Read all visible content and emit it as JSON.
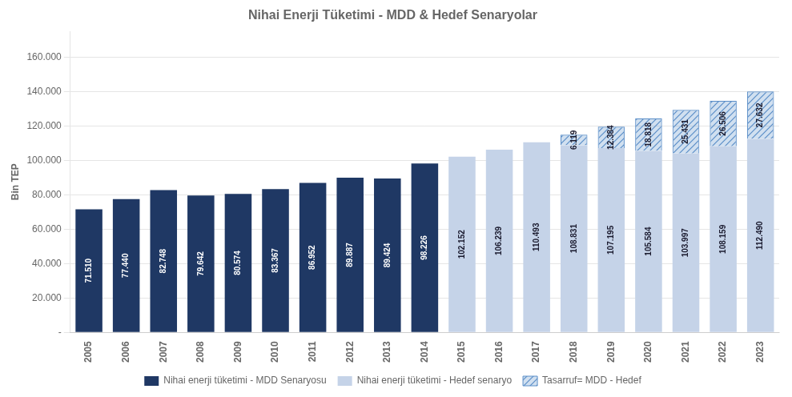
{
  "chart_data": {
    "type": "bar",
    "title": "Nihai Enerji Tüketimi - MDD & Hedef Senaryolar",
    "y_label": "Bin TEP",
    "categories": [
      "2005",
      "2006",
      "2007",
      "2008",
      "2009",
      "2010",
      "2011",
      "2012",
      "2013",
      "2014",
      "2015",
      "2016",
      "2017",
      "2018",
      "2019",
      "2020",
      "2021",
      "2022",
      "2023"
    ],
    "series": [
      {
        "name": "Nihai enerji tüketimi - MDD Senaryosu",
        "color": "#1F3864",
        "values": [
          71510,
          77440,
          82748,
          79642,
          80574,
          83367,
          86952,
          89887,
          89424,
          98226,
          null,
          null,
          null,
          null,
          null,
          null,
          null,
          null,
          null
        ],
        "value_labels": [
          "71.510",
          "77.440",
          "82.748",
          "79.642",
          "80.574",
          "83.367",
          "86.952",
          "89.887",
          "89.424",
          "98.226",
          null,
          null,
          null,
          null,
          null,
          null,
          null,
          null,
          null
        ]
      },
      {
        "name": "Nihai enerji tüketimi - Hedef senaryo",
        "color": "#C5D3E8",
        "values": [
          null,
          null,
          null,
          null,
          null,
          null,
          null,
          null,
          null,
          null,
          102152,
          106239,
          110493,
          108831,
          107195,
          105584,
          103997,
          108159,
          112490
        ],
        "value_labels": [
          null,
          null,
          null,
          null,
          null,
          null,
          null,
          null,
          null,
          null,
          "102.152",
          "106.239",
          "110.493",
          "108.831",
          "107.195",
          "105.584",
          "103.997",
          "108.159",
          "112.490"
        ]
      },
      {
        "name": "Tasarruf= MDD - Hedef",
        "color": "#5B8EC8",
        "values": [
          null,
          null,
          null,
          null,
          null,
          null,
          null,
          null,
          null,
          null,
          0,
          0,
          0,
          6119,
          12384,
          18818,
          25431,
          26506,
          27632
        ],
        "value_labels": [
          null,
          null,
          null,
          null,
          null,
          null,
          null,
          null,
          null,
          null,
          null,
          null,
          null,
          "6.119",
          "12.384",
          "18.818",
          "25.431",
          "26.506",
          "27.632"
        ]
      }
    ],
    "stacked": true,
    "data_labels": true,
    "ylim": [
      0,
      175000
    ],
    "yticks": [
      {
        "value": 0,
        "label": "-"
      },
      {
        "value": 20000,
        "label": "20.000"
      },
      {
        "value": 40000,
        "label": "40.000"
      },
      {
        "value": 60000,
        "label": "60.000"
      },
      {
        "value": 80000,
        "label": "80.000"
      },
      {
        "value": 100000,
        "label": "100.000"
      },
      {
        "value": 120000,
        "label": "120.000"
      },
      {
        "value": 140000,
        "label": "140.000"
      },
      {
        "value": 160000,
        "label": "160.000"
      }
    ],
    "grid": true,
    "legend": "bottom"
  }
}
